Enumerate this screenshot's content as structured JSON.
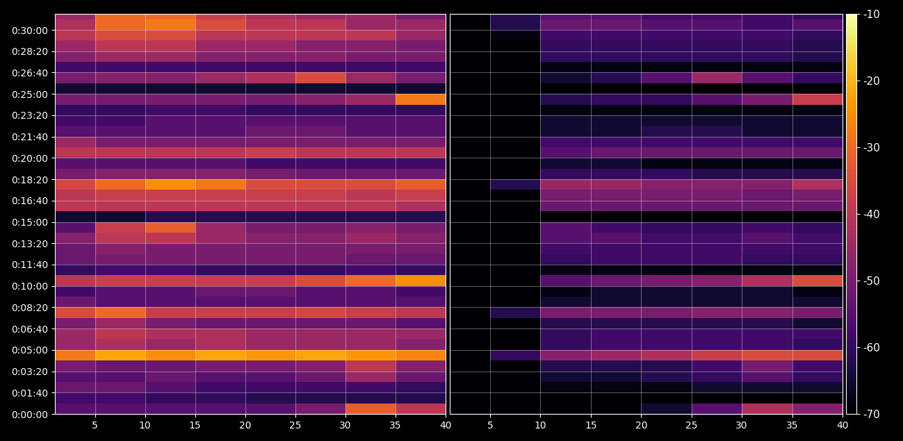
{
  "chart_data": {
    "type": "heatmap",
    "grid": true,
    "x_edges": [
      1,
      5,
      10,
      15,
      20,
      25,
      30,
      35,
      40
    ],
    "y_edges": [
      0,
      50,
      100,
      150,
      200,
      250,
      300,
      350,
      400,
      450,
      500,
      550,
      600,
      650,
      700,
      750,
      800,
      850,
      900,
      950,
      1000,
      1050,
      1100,
      1150,
      1200,
      1250,
      1300,
      1350,
      1400,
      1450,
      1500,
      1550,
      1600,
      1650,
      1700,
      1750,
      1800,
      1850,
      1875
    ],
    "xlim": [
      1,
      40
    ],
    "xticks": [
      5,
      10,
      15,
      20,
      25,
      30,
      35,
      40
    ],
    "ylim": [
      0,
      1875
    ],
    "yticks": [
      {
        "value": 0,
        "label": "0:00:00"
      },
      {
        "value": 100,
        "label": "0:01:40"
      },
      {
        "value": 200,
        "label": "0:03:20"
      },
      {
        "value": 300,
        "label": "0:05:00"
      },
      {
        "value": 400,
        "label": "0:06:40"
      },
      {
        "value": 500,
        "label": "0:08:20"
      },
      {
        "value": 600,
        "label": "0:10:00"
      },
      {
        "value": 700,
        "label": "0:11:40"
      },
      {
        "value": 800,
        "label": "0:13:20"
      },
      {
        "value": 900,
        "label": "0:15:00"
      },
      {
        "value": 1000,
        "label": "0:16:40"
      },
      {
        "value": 1100,
        "label": "0:18:20"
      },
      {
        "value": 1200,
        "label": "0:20:00"
      },
      {
        "value": 1300,
        "label": "0:21:40"
      },
      {
        "value": 1400,
        "label": "0:23:20"
      },
      {
        "value": 1500,
        "label": "0:25:00"
      },
      {
        "value": 1600,
        "label": "0:26:40"
      },
      {
        "value": 1700,
        "label": "0:28:20"
      },
      {
        "value": 1800,
        "label": "0:30:00"
      }
    ],
    "colorbar": {
      "range": [
        -70,
        -10
      ],
      "ticks": [
        -70,
        -60,
        -50,
        -40,
        -30,
        -20,
        -10
      ]
    },
    "panels": [
      {
        "tick_labels": true,
        "cells": [
          [
            -55,
            -55,
            -55,
            -55,
            -55,
            -50,
            -32,
            -40
          ],
          [
            -58,
            -58,
            -60,
            -60,
            -62,
            -62,
            -62,
            -62
          ],
          [
            -52,
            -52,
            -55,
            -58,
            -58,
            -58,
            -58,
            -60
          ],
          [
            -55,
            -55,
            -52,
            -55,
            -55,
            -52,
            -45,
            -52
          ],
          [
            -50,
            -52,
            -52,
            -50,
            -50,
            -48,
            -40,
            -48
          ],
          [
            -28,
            -22,
            -25,
            -22,
            -24,
            -22,
            -24,
            -26
          ],
          [
            -45,
            -42,
            -45,
            -42,
            -45,
            -45,
            -45,
            -48
          ],
          [
            -45,
            -40,
            -42,
            -42,
            -45,
            -45,
            -45,
            -45
          ],
          [
            -50,
            -45,
            -50,
            -52,
            -52,
            -52,
            -52,
            -55
          ],
          [
            -35,
            -30,
            -38,
            -38,
            -38,
            -36,
            -38,
            -40
          ],
          [
            -52,
            -55,
            -55,
            -55,
            -55,
            -55,
            -55,
            -55
          ],
          [
            -58,
            -55,
            -55,
            -52,
            -52,
            -55,
            -55,
            -58
          ],
          [
            -40,
            -38,
            -38,
            -38,
            -38,
            -35,
            -30,
            -25
          ],
          [
            -60,
            -58,
            -58,
            -60,
            -60,
            -60,
            -58,
            -60
          ],
          [
            -52,
            -50,
            -50,
            -50,
            -50,
            -50,
            -52,
            -52
          ],
          [
            -52,
            -48,
            -50,
            -50,
            -50,
            -50,
            -50,
            -50
          ],
          [
            -48,
            -40,
            -40,
            -45,
            -48,
            -48,
            -45,
            -48
          ],
          [
            -55,
            -38,
            -32,
            -45,
            -50,
            -50,
            -48,
            -50
          ],
          [
            -65,
            -65,
            -62,
            -62,
            -62,
            -62,
            -62,
            -62
          ],
          [
            -40,
            -40,
            -40,
            -40,
            -40,
            -40,
            -40,
            -42
          ],
          [
            -40,
            -38,
            -38,
            -38,
            -38,
            -38,
            -40,
            -38
          ],
          [
            -36,
            -30,
            -25,
            -28,
            -35,
            -35,
            -35,
            -32
          ],
          [
            -50,
            -48,
            -48,
            -48,
            -50,
            -52,
            -52,
            -52
          ],
          [
            -55,
            -55,
            -55,
            -55,
            -58,
            -58,
            -58,
            -58
          ],
          [
            -40,
            -40,
            -40,
            -40,
            -38,
            -40,
            -40,
            -40
          ],
          [
            -45,
            -50,
            -50,
            -50,
            -50,
            -50,
            -50,
            -50
          ],
          [
            -55,
            -55,
            -55,
            -55,
            -52,
            -52,
            -55,
            -55
          ],
          [
            -58,
            -58,
            -55,
            -55,
            -55,
            -55,
            -55,
            -55
          ],
          [
            -60,
            -60,
            -58,
            -58,
            -60,
            -60,
            -60,
            -60
          ],
          [
            -50,
            -50,
            -50,
            -50,
            -50,
            -48,
            -45,
            -28
          ],
          [
            -65,
            -65,
            -65,
            -65,
            -65,
            -65,
            -65,
            -65
          ],
          [
            -50,
            -48,
            -48,
            -45,
            -42,
            -35,
            -45,
            -50
          ],
          [
            -58,
            -58,
            -58,
            -58,
            -58,
            -58,
            -58,
            -58
          ],
          [
            -48,
            -45,
            -45,
            -48,
            -48,
            -48,
            -50,
            -50
          ],
          [
            -45,
            -40,
            -40,
            -45,
            -45,
            -48,
            -48,
            -50
          ],
          [
            -40,
            -35,
            -35,
            -40,
            -40,
            -40,
            -40,
            -45
          ],
          [
            -42,
            -30,
            -28,
            -35,
            -40,
            -40,
            -45,
            -45
          ],
          [
            -45,
            -30,
            -30,
            -38,
            -42,
            -45,
            -45,
            -50
          ]
        ]
      },
      {
        "tick_labels": "x",
        "cells": [
          [
            -70,
            -70,
            -70,
            -70,
            -65,
            -55,
            -42,
            -48
          ],
          [
            -70,
            -70,
            -70,
            -70,
            -70,
            -70,
            -70,
            -70
          ],
          [
            -70,
            -70,
            -68,
            -68,
            -68,
            -65,
            -65,
            -65
          ],
          [
            -70,
            -70,
            -65,
            -65,
            -62,
            -60,
            -55,
            -60
          ],
          [
            -70,
            -70,
            -62,
            -62,
            -62,
            -58,
            -50,
            -58
          ],
          [
            -70,
            -60,
            -48,
            -45,
            -42,
            -38,
            -35,
            -35
          ],
          [
            -70,
            -70,
            -60,
            -58,
            -58,
            -58,
            -58,
            -60
          ],
          [
            -70,
            -70,
            -60,
            -58,
            -58,
            -58,
            -58,
            -58
          ],
          [
            -70,
            -70,
            -62,
            -62,
            -62,
            -62,
            -62,
            -65
          ],
          [
            -70,
            -62,
            -50,
            -50,
            -50,
            -48,
            -48,
            -50
          ],
          [
            -70,
            -70,
            -65,
            -65,
            -65,
            -65,
            -65,
            -65
          ],
          [
            -70,
            -70,
            -68,
            -65,
            -65,
            -65,
            -65,
            -68
          ],
          [
            -70,
            -70,
            -55,
            -52,
            -50,
            -48,
            -42,
            -35
          ],
          [
            -70,
            -70,
            -68,
            -68,
            -68,
            -68,
            -68,
            -68
          ],
          [
            -70,
            -70,
            -60,
            -58,
            -58,
            -58,
            -60,
            -60
          ],
          [
            -70,
            -70,
            -58,
            -58,
            -58,
            -58,
            -58,
            -58
          ],
          [
            -70,
            -70,
            -55,
            -55,
            -58,
            -58,
            -55,
            -58
          ],
          [
            -70,
            -70,
            -55,
            -58,
            -60,
            -60,
            -58,
            -60
          ],
          [
            -70,
            -70,
            -70,
            -70,
            -70,
            -70,
            -70,
            -70
          ],
          [
            -70,
            -70,
            -52,
            -52,
            -52,
            -52,
            -52,
            -52
          ],
          [
            -70,
            -70,
            -50,
            -50,
            -50,
            -50,
            -52,
            -50
          ],
          [
            -70,
            -62,
            -45,
            -45,
            -48,
            -48,
            -48,
            -42
          ],
          [
            -70,
            -70,
            -60,
            -60,
            -60,
            -62,
            -62,
            -62
          ],
          [
            -70,
            -70,
            -65,
            -65,
            -68,
            -68,
            -68,
            -68
          ],
          [
            -70,
            -70,
            -55,
            -52,
            -52,
            -52,
            -52,
            -52
          ],
          [
            -70,
            -70,
            -58,
            -58,
            -58,
            -58,
            -58,
            -58
          ],
          [
            -70,
            -70,
            -65,
            -65,
            -62,
            -62,
            -65,
            -65
          ],
          [
            -70,
            -70,
            -65,
            -65,
            -65,
            -65,
            -65,
            -65
          ],
          [
            -70,
            -70,
            -68,
            -68,
            -68,
            -68,
            -68,
            -68
          ],
          [
            -70,
            -70,
            -62,
            -60,
            -60,
            -55,
            -50,
            -38
          ],
          [
            -70,
            -70,
            -70,
            -70,
            -70,
            -70,
            -70,
            -70
          ],
          [
            -70,
            -70,
            -65,
            -62,
            -55,
            -45,
            -55,
            -60
          ],
          [
            -70,
            -70,
            -68,
            -68,
            -68,
            -68,
            -68,
            -68
          ],
          [
            -70,
            -70,
            -60,
            -60,
            -60,
            -60,
            -60,
            -62
          ],
          [
            -70,
            -70,
            -60,
            -60,
            -60,
            -60,
            -60,
            -62
          ],
          [
            -70,
            -68,
            -58,
            -58,
            -58,
            -58,
            -58,
            -60
          ],
          [
            -70,
            -62,
            -52,
            -52,
            -55,
            -55,
            -58,
            -55
          ],
          [
            -70,
            -62,
            -55,
            -55,
            -58,
            -58,
            -58,
            -60
          ]
        ]
      }
    ]
  }
}
